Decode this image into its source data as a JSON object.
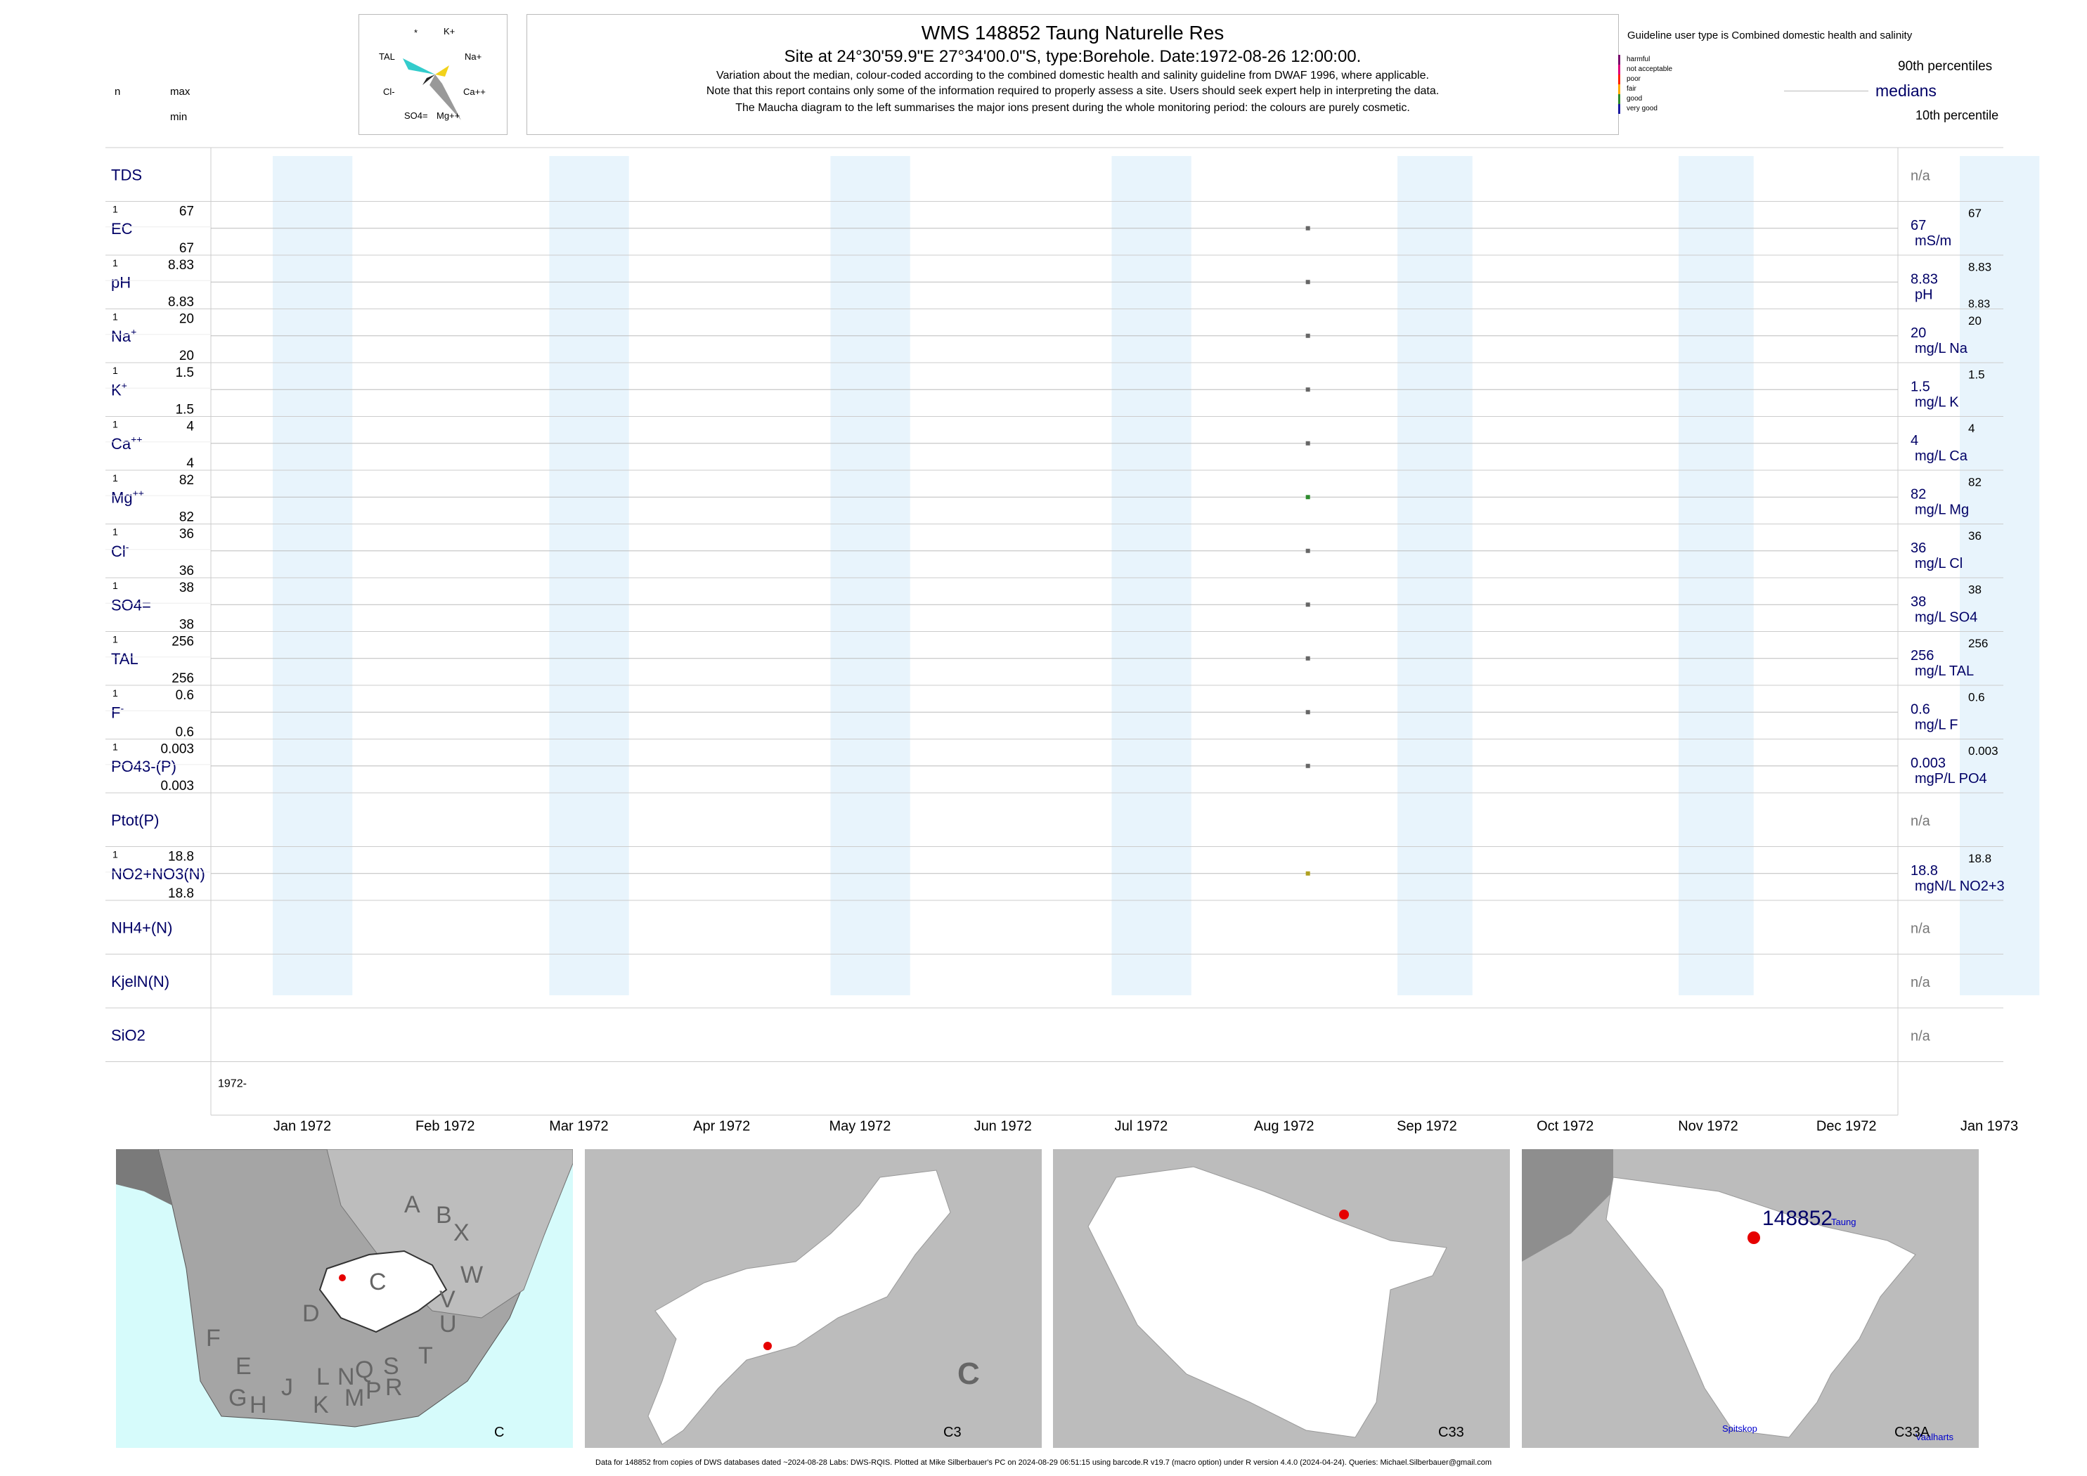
{
  "header": {
    "title": "WMS 148852  Taung Naturelle Res",
    "site_line": "Site at 24°30'59.9\"E 27°34'00.0\"S, type:Borehole. Date:1972-08-26 12:00:00.",
    "note1": "Variation about the median,  colour-coded according to the combined domestic health and salinity guideline from DWAF 1996, where applicable.",
    "note2": "Note that this report contains only some of the information required to properly assess a site. Users should seek expert help in interpreting the data.",
    "note3": "The Maucha diagram to the left summarises the major ions present during the whole monitoring period: the colours are purely cosmetic."
  },
  "left_legend": {
    "n": "n",
    "max": "max",
    "min": "min"
  },
  "maucha": {
    "labels": [
      "*",
      "K+",
      "TAL",
      "Na+",
      "Cl-",
      "Ca++",
      "SO4=",
      "Mg++"
    ]
  },
  "guideline": {
    "title": "Guideline user type is Combined domestic health and salinity",
    "classes": [
      {
        "label": "harmful",
        "color": "#7b0f6e"
      },
      {
        "label": "not acceptable",
        "color": "#e0007a"
      },
      {
        "label": "poor",
        "color": "#ff2200"
      },
      {
        "label": "fair",
        "color": "#ffaa00"
      },
      {
        "label": "good",
        "color": "#2e8b2e"
      },
      {
        "label": "very good",
        "color": "#1a1aa0"
      }
    ],
    "p90": "90th percentiles",
    "medians": "medians",
    "p10": "10th percentile"
  },
  "chart_data": {
    "type": "scatter",
    "x_axis": {
      "range": [
        "1972-01-01",
        "1973-01-01"
      ],
      "tick_labels": [
        "Jan 1972",
        "Feb 1972",
        "Mar 1972",
        "Apr 1972",
        "May 1972",
        "Jun 1972",
        "Jul 1972",
        "Aug 1972",
        "Sep 1972",
        "Oct 1972",
        "Nov 1972",
        "Dec 1972",
        "Jan 1973"
      ],
      "year_label": "1972-"
    },
    "sample_date": "1972-08-26",
    "rows": [
      {
        "label": "TDS",
        "n": "",
        "max": "",
        "min": "",
        "value": null,
        "median": "",
        "median_sup": "",
        "unit": "",
        "p10": "",
        "na": "n/a",
        "color": ""
      },
      {
        "label": "EC",
        "n": "1",
        "max": "67",
        "min": "67",
        "value": 67,
        "median": "67",
        "median_sup": "67",
        "unit": "mS/m",
        "p10": "",
        "na": "",
        "color": "#666666"
      },
      {
        "label": "pH",
        "n": "1",
        "max": "8.83",
        "min": "8.83",
        "value": 8.83,
        "median": "8.83",
        "median_sup": "8.83",
        "unit": "pH",
        "p10": "8.83",
        "na": "",
        "color": "#666666"
      },
      {
        "label": "Na+",
        "n": "1",
        "max": "20",
        "min": "20",
        "value": 20,
        "median": "20",
        "median_sup": "20",
        "unit": "mg/L Na",
        "p10": "",
        "na": "",
        "color": "#666666"
      },
      {
        "label": "K+",
        "n": "1",
        "max": "1.5",
        "min": "1.5",
        "value": 1.5,
        "median": "1.5",
        "median_sup": "1.5",
        "unit": "mg/L K",
        "p10": "",
        "na": "",
        "color": "#666666"
      },
      {
        "label": "Ca++",
        "n": "1",
        "max": "4",
        "min": "4",
        "value": 4,
        "median": "4",
        "median_sup": "4",
        "unit": "mg/L Ca",
        "p10": "",
        "na": "",
        "color": "#666666"
      },
      {
        "label": "Mg++",
        "n": "1",
        "max": "82",
        "min": "82",
        "value": 82,
        "median": "82",
        "median_sup": "82",
        "unit": "mg/L Mg",
        "p10": "",
        "na": "",
        "color": "#2e8b2e"
      },
      {
        "label": "Cl-",
        "n": "1",
        "max": "36",
        "min": "36",
        "value": 36,
        "median": "36",
        "median_sup": "36",
        "unit": "mg/L Cl",
        "p10": "",
        "na": "",
        "color": "#666666"
      },
      {
        "label": "SO4=",
        "n": "1",
        "max": "38",
        "min": "38",
        "value": 38,
        "median": "38",
        "median_sup": "38",
        "unit": "mg/L SO4",
        "p10": "",
        "na": "",
        "color": "#666666"
      },
      {
        "label": "TAL",
        "n": "1",
        "max": "256",
        "min": "256",
        "value": 256,
        "median": "256",
        "median_sup": "256",
        "unit": "mg/L TAL",
        "p10": "",
        "na": "",
        "color": "#666666"
      },
      {
        "label": "F-",
        "n": "1",
        "max": "0.6",
        "min": "0.6",
        "value": 0.6,
        "median": "0.6",
        "median_sup": "0.6",
        "unit": "mg/L F",
        "p10": "",
        "na": "",
        "color": "#666666"
      },
      {
        "label": "PO43-(P)",
        "n": "1",
        "max": "0.003",
        "min": "0.003",
        "value": 0.003,
        "median": "0.003",
        "median_sup": "0.003",
        "unit": "mgP/L PO4",
        "p10": "",
        "na": "",
        "color": "#666666"
      },
      {
        "label": "Ptot(P)",
        "n": "",
        "max": "",
        "min": "",
        "value": null,
        "median": "",
        "median_sup": "",
        "unit": "",
        "p10": "",
        "na": "n/a",
        "color": ""
      },
      {
        "label": "NO2+NO3(N)",
        "n": "1",
        "max": "18.8",
        "min": "18.8",
        "value": 18.8,
        "median": "18.8",
        "median_sup": "18.8",
        "unit": "mgN/L NO2+3",
        "p10": "",
        "na": "",
        "color": "#b0a020"
      },
      {
        "label": "NH4+(N)",
        "n": "",
        "max": "",
        "min": "",
        "value": null,
        "median": "",
        "median_sup": "",
        "unit": "",
        "p10": "",
        "na": "n/a",
        "color": ""
      },
      {
        "label": "KjelN(N)",
        "n": "",
        "max": "",
        "min": "",
        "value": null,
        "median": "",
        "median_sup": "",
        "unit": "",
        "p10": "",
        "na": "n/a",
        "color": ""
      },
      {
        "label": "SiO2",
        "n": "",
        "max": "",
        "min": "",
        "value": null,
        "median": "",
        "median_sup": "",
        "unit": "",
        "p10": "",
        "na": "n/a",
        "color": ""
      }
    ]
  },
  "maps": {
    "map1": {
      "corner": "C",
      "letters": [
        "A",
        "B",
        "X",
        "W",
        "C",
        "V",
        "U",
        "D",
        "T",
        "F",
        "E",
        "J",
        "L",
        "N",
        "Q",
        "S",
        "G",
        "H",
        "K",
        "M",
        "P",
        "R"
      ]
    },
    "map2": {
      "corner": "C3",
      "big": "C"
    },
    "map3": {
      "corner": "C33"
    },
    "map4": {
      "corner": "C33A",
      "site": "148852",
      "place1": "Spitskop",
      "place2": "Taung",
      "place3": "Vaalharts"
    }
  },
  "footer": "Data for 148852 from copies of DWS databases dated ~2024-08-28 Labs: DWS-RQIS. Plotted at Mike Silberbauer's PC on 2024-08-29 06:51:15 using barcode.R v19.7 (macro option) under R version 4.4.0 (2024-04-24). Queries: Michael.Silberbauer@gmail.com"
}
